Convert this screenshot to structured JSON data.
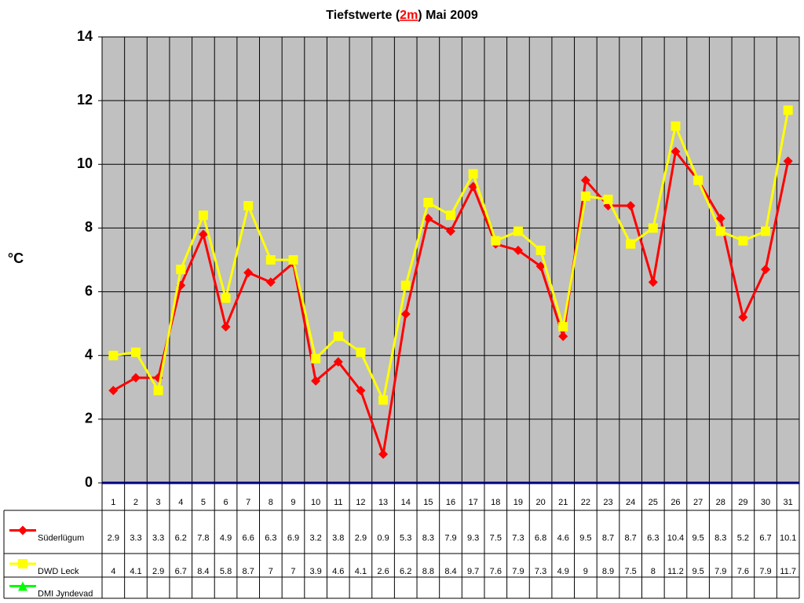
{
  "chart_data": {
    "type": "line",
    "title": {
      "before": "Tiefstwerte (",
      "highlight": "2m",
      "after": ") Mai 2009"
    },
    "y_label": "°C",
    "categories": [
      "1",
      "2",
      "3",
      "4",
      "5",
      "6",
      "7",
      "8",
      "9",
      "10",
      "11",
      "12",
      "13",
      "14",
      "15",
      "16",
      "17",
      "18",
      "19",
      "20",
      "21",
      "22",
      "23",
      "24",
      "25",
      "26",
      "27",
      "28",
      "29",
      "30",
      "31"
    ],
    "series": [
      {
        "name": "Süderlügum",
        "color": "#ff0000",
        "marker": "diamond",
        "values": [
          2.9,
          3.3,
          3.3,
          6.2,
          7.8,
          4.9,
          6.6,
          6.3,
          6.9,
          3.2,
          3.8,
          2.9,
          0.9,
          5.3,
          8.3,
          7.9,
          9.3,
          7.5,
          7.3,
          6.8,
          4.6,
          9.5,
          8.7,
          8.7,
          6.3,
          10.4,
          9.5,
          8.3,
          5.2,
          6.7,
          10.1
        ]
      },
      {
        "name": "DWD Leck",
        "color": "#ffff00",
        "marker": "square",
        "values": [
          4,
          4.1,
          2.9,
          6.7,
          8.4,
          5.8,
          8.7,
          7,
          7,
          3.9,
          4.6,
          4.1,
          2.6,
          6.2,
          8.8,
          8.4,
          9.7,
          7.6,
          7.9,
          7.3,
          4.9,
          9,
          8.9,
          7.5,
          8,
          11.2,
          9.5,
          7.9,
          7.6,
          7.9,
          11.7
        ]
      },
      {
        "name": "DMI Jyndevad",
        "color": "#00ff00",
        "marker": "triangle",
        "values": [
          null,
          null,
          null,
          null,
          null,
          null,
          null,
          null,
          null,
          null,
          null,
          null,
          null,
          null,
          null,
          null,
          null,
          null,
          null,
          null,
          null,
          null,
          null,
          null,
          null,
          null,
          null,
          null,
          null,
          null,
          null
        ]
      }
    ],
    "ylim": [
      0,
      14
    ],
    "yticks": [
      0,
      2,
      4,
      6,
      8,
      10,
      12,
      14
    ],
    "grid": true
  }
}
